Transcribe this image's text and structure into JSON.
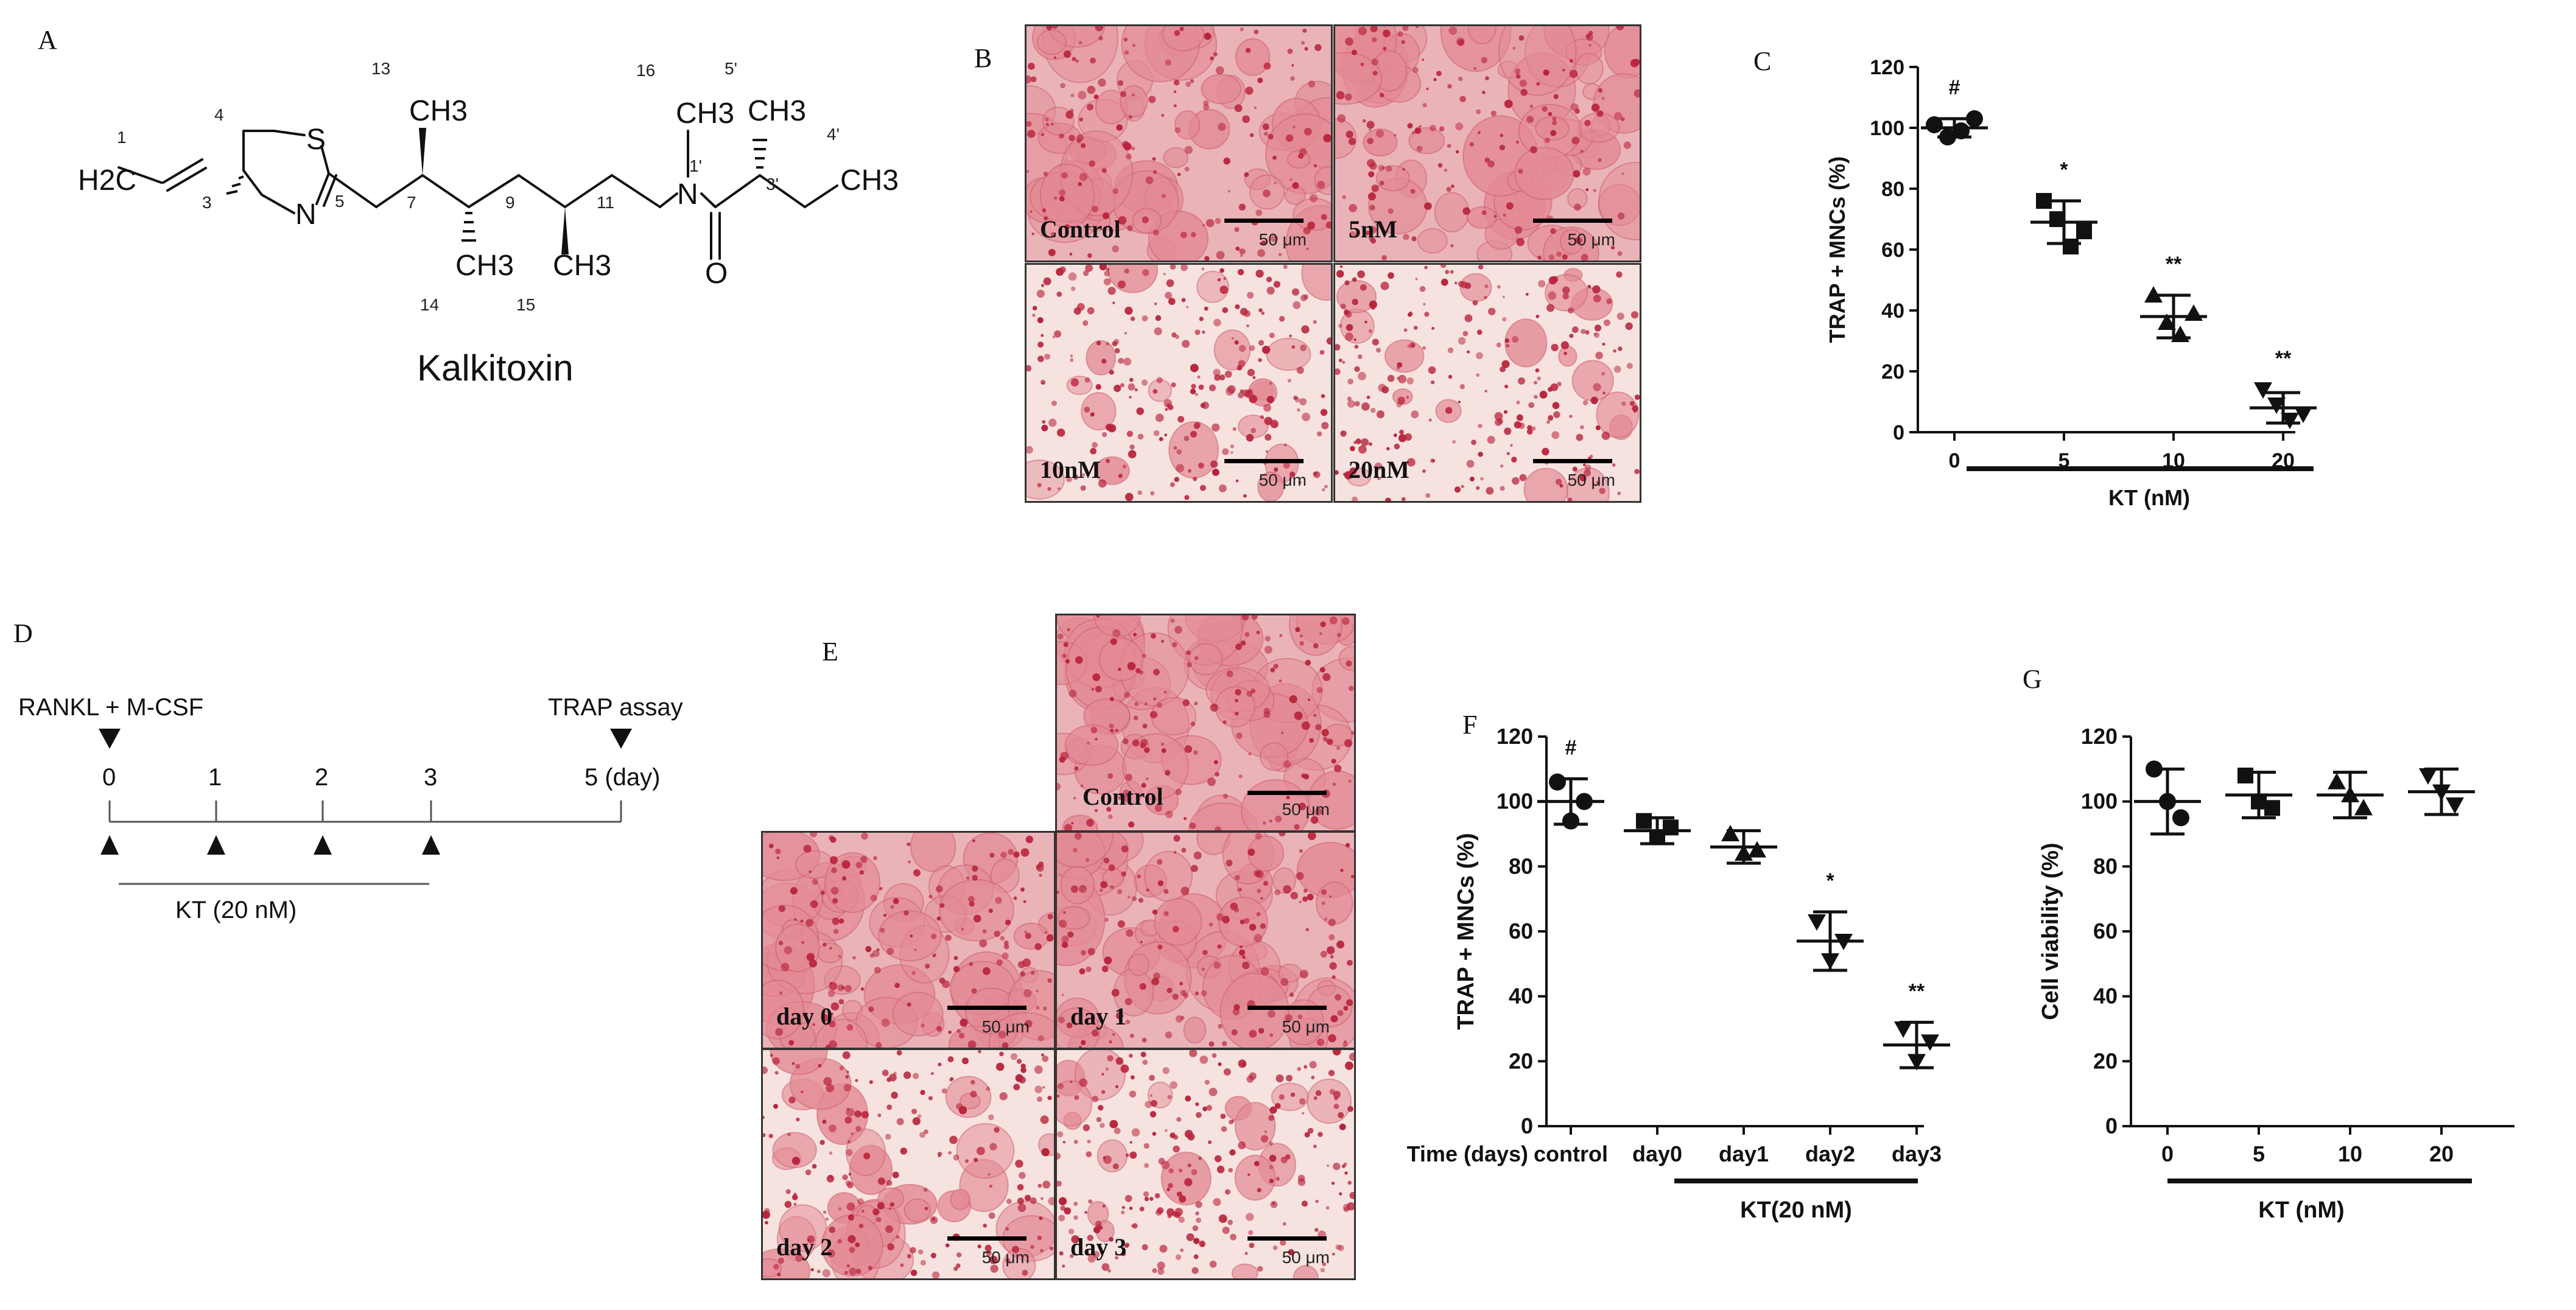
{
  "figure": {
    "panels": {
      "A": "A",
      "B": "B",
      "C": "C",
      "D": "D",
      "E": "E",
      "F": "F",
      "G": "G"
    },
    "structure": {
      "compound_name": "Kalkitoxin",
      "atom_labels": {
        "h2c": "H2C",
        "s": "S",
        "n": "N",
        "n_amide": "N",
        "o": "O",
        "ch3_13": "CH3",
        "ch3_14": "CH3",
        "ch3_15": "CH3",
        "ch3_16": "CH3",
        "ch3_5p": "CH3",
        "ch3_4p": "CH3"
      },
      "numbers": [
        "1",
        "3",
        "4",
        "5",
        "7",
        "9",
        "11",
        "13",
        "14",
        "15",
        "16",
        "1'",
        "3'",
        "4'",
        "5'"
      ]
    },
    "micrographs_B": [
      {
        "label": "Control",
        "scale": "50 μm"
      },
      {
        "label": "5nM",
        "scale": "50 μm"
      },
      {
        "label": "10nM",
        "scale": "50 μm"
      },
      {
        "label": "20nM",
        "scale": "50 μm"
      }
    ],
    "micrographs_E": [
      {
        "label": "Control",
        "scale": "50 μm"
      },
      {
        "label": "day 0",
        "scale": "50 μm"
      },
      {
        "label": "day 1",
        "scale": "50 μm"
      },
      {
        "label": "day 2",
        "scale": "50 μm"
      },
      {
        "label": "day 3",
        "scale": "50 μm"
      }
    ],
    "timeline": {
      "left_label": "RANKL + M-CSF",
      "right_label": "TRAP assay",
      "ticks": [
        "0",
        "1",
        "2",
        "3",
        "5 (day)"
      ],
      "treatment_label": "KT  (20 nM)"
    },
    "colors": {
      "stain_bg": "#f6e3df",
      "stain_cell": "#e38a95",
      "stain_dark": "#b8243c",
      "ink": "#111111"
    }
  },
  "chart_data": [
    {
      "id": "C",
      "type": "scatter",
      "title": "",
      "ylabel": "TRAP + MNCs  (%)",
      "xlabel": "KT (nM)",
      "categories": [
        "0",
        "5",
        "10",
        "20"
      ],
      "ylim": [
        0,
        120
      ],
      "yticks": [
        "0",
        "20",
        "40",
        "60",
        "80",
        "100",
        "120"
      ],
      "markers": [
        "circle",
        "square",
        "triangle",
        "triangle-down"
      ],
      "points": [
        [
          101,
          97,
          99,
          103
        ],
        [
          76,
          70,
          61,
          66
        ],
        [
          45,
          36,
          32,
          39
        ],
        [
          14,
          9,
          4,
          6
        ]
      ],
      "means": [
        100,
        69,
        38,
        8
      ],
      "sd": [
        3,
        7,
        7,
        5
      ],
      "annotations": [
        "#",
        "*",
        "**",
        "**"
      ]
    },
    {
      "id": "F",
      "type": "scatter",
      "title": "",
      "ylabel": "TRAP + MNCs  (%)",
      "xlabel": "KT(20 nM)",
      "xtitle": "Time (days)",
      "categories": [
        "control",
        "day0",
        "day1",
        "day2",
        "day3"
      ],
      "ylim": [
        0,
        120
      ],
      "yticks": [
        "0",
        "20",
        "40",
        "60",
        "80",
        "100",
        "120"
      ],
      "markers": [
        "circle",
        "square",
        "triangle",
        "triangle-down",
        "triangle-down"
      ],
      "points": [
        [
          106,
          94,
          100
        ],
        [
          94,
          89,
          92
        ],
        [
          90,
          84,
          85
        ],
        [
          63,
          51,
          57
        ],
        [
          30,
          20,
          26
        ]
      ],
      "means": [
        100,
        91,
        86,
        57,
        25
      ],
      "sd": [
        7,
        4,
        5,
        9,
        7
      ],
      "annotations": [
        "#",
        "",
        "",
        "*",
        "**"
      ]
    },
    {
      "id": "G",
      "type": "scatter",
      "title": "",
      "ylabel": "Cell viability (%)",
      "xlabel": "KT (nM)",
      "categories": [
        "0",
        "5",
        "10",
        "20"
      ],
      "ylim": [
        0,
        120
      ],
      "yticks": [
        "0",
        "20",
        "40",
        "60",
        "80",
        "100",
        "120"
      ],
      "markers": [
        "circle",
        "square",
        "triangle",
        "triangle-down"
      ],
      "points": [
        [
          110,
          100,
          95
        ],
        [
          108,
          100,
          98
        ],
        [
          106,
          102,
          98
        ],
        [
          108,
          103,
          99
        ]
      ],
      "means": [
        100,
        102,
        102,
        103
      ],
      "sd": [
        10,
        7,
        7,
        7
      ],
      "annotations": [
        "",
        "",
        "",
        ""
      ]
    }
  ]
}
